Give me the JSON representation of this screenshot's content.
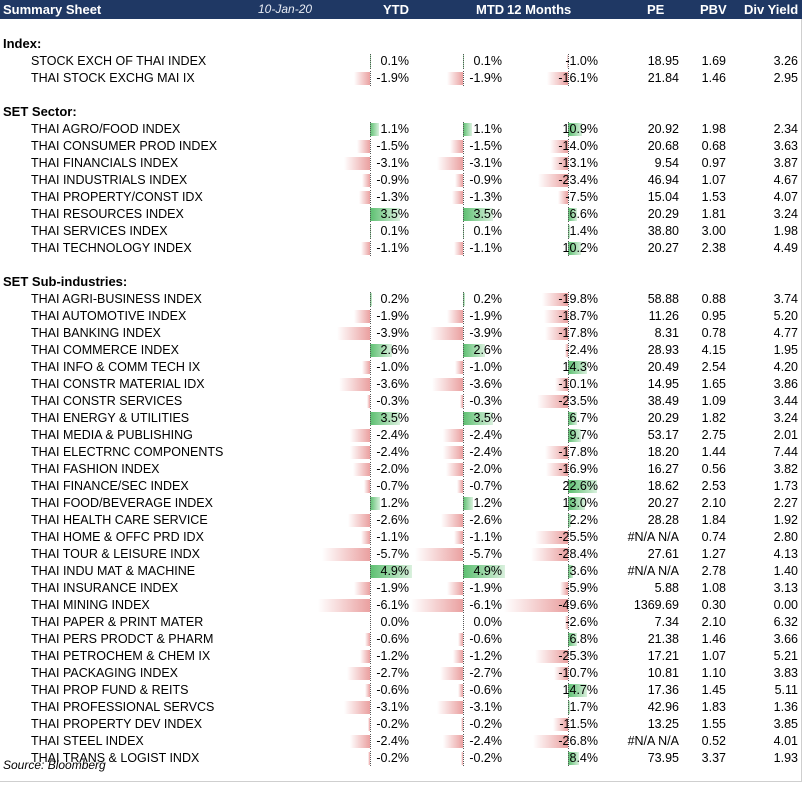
{
  "header": {
    "title": "Summary Sheet",
    "date": "10-Jan-20",
    "columns": [
      "YTD",
      "MTD",
      "12 Months",
      "PE",
      "PBV",
      "Div Yield"
    ]
  },
  "sections": [
    {
      "title": "Index:",
      "rows": [
        {
          "name": "STOCK EXCH OF THAI INDEX",
          "ytd": 0.1,
          "mtd": 0.1,
          "m12": -1.0,
          "pe": "18.95",
          "pbv": "1.69",
          "div": "3.26"
        },
        {
          "name": "THAI STOCK EXCHG MAI IX",
          "ytd": -1.9,
          "mtd": -1.9,
          "m12": -16.1,
          "pe": "21.84",
          "pbv": "1.46",
          "div": "2.95"
        }
      ]
    },
    {
      "title": "SET Sector:",
      "rows": [
        {
          "name": "THAI AGRO/FOOD INDEX",
          "ytd": 1.1,
          "mtd": 1.1,
          "m12": 10.9,
          "pe": "20.92",
          "pbv": "1.98",
          "div": "2.34"
        },
        {
          "name": "THAI CONSUMER PROD INDEX",
          "ytd": -1.5,
          "mtd": -1.5,
          "m12": -14.0,
          "pe": "20.68",
          "pbv": "0.68",
          "div": "3.63"
        },
        {
          "name": "THAI FINANCIALS INDEX",
          "ytd": -3.1,
          "mtd": -3.1,
          "m12": -13.1,
          "pe": "9.54",
          "pbv": "0.97",
          "div": "3.87"
        },
        {
          "name": "THAI INDUSTRIALS INDEX",
          "ytd": -0.9,
          "mtd": -0.9,
          "m12": -23.4,
          "pe": "46.94",
          "pbv": "1.07",
          "div": "4.67"
        },
        {
          "name": "THAI PROPERTY/CONST IDX",
          "ytd": -1.3,
          "mtd": -1.3,
          "m12": -7.5,
          "pe": "15.04",
          "pbv": "1.53",
          "div": "4.07"
        },
        {
          "name": "THAI RESOURCES INDEX",
          "ytd": 3.5,
          "mtd": 3.5,
          "m12": 6.6,
          "pe": "20.29",
          "pbv": "1.81",
          "div": "3.24"
        },
        {
          "name": "THAI SERVICES INDEX",
          "ytd": 0.1,
          "mtd": 0.1,
          "m12": 1.4,
          "pe": "38.80",
          "pbv": "3.00",
          "div": "1.98"
        },
        {
          "name": "THAI TECHNOLOGY INDEX",
          "ytd": -1.1,
          "mtd": -1.1,
          "m12": 10.2,
          "pe": "20.27",
          "pbv": "2.38",
          "div": "4.49"
        }
      ]
    },
    {
      "title": "SET Sub-industries:",
      "rows": [
        {
          "name": "THAI AGRI-BUSINESS INDEX",
          "ytd": 0.2,
          "mtd": 0.2,
          "m12": -19.8,
          "pe": "58.88",
          "pbv": "0.88",
          "div": "3.74"
        },
        {
          "name": "THAI AUTOMOTIVE INDEX",
          "ytd": -1.9,
          "mtd": -1.9,
          "m12": -18.7,
          "pe": "11.26",
          "pbv": "0.95",
          "div": "5.20"
        },
        {
          "name": "THAI BANKING INDEX",
          "ytd": -3.9,
          "mtd": -3.9,
          "m12": -17.8,
          "pe": "8.31",
          "pbv": "0.78",
          "div": "4.77"
        },
        {
          "name": "THAI COMMERCE INDEX",
          "ytd": 2.6,
          "mtd": 2.6,
          "m12": -2.4,
          "pe": "28.93",
          "pbv": "4.15",
          "div": "1.95"
        },
        {
          "name": "THAI INFO & COMM TECH IX",
          "ytd": -1.0,
          "mtd": -1.0,
          "m12": 14.3,
          "pe": "20.49",
          "pbv": "2.54",
          "div": "4.20"
        },
        {
          "name": "THAI CONSTR MATERIAL IDX",
          "ytd": -3.6,
          "mtd": -3.6,
          "m12": -10.1,
          "pe": "14.95",
          "pbv": "1.65",
          "div": "3.86"
        },
        {
          "name": "THAI CONSTR SERVICES",
          "ytd": -0.3,
          "mtd": -0.3,
          "m12": -23.5,
          "pe": "38.49",
          "pbv": "1.09",
          "div": "3.44"
        },
        {
          "name": "THAI ENERGY & UTILITIES",
          "ytd": 3.5,
          "mtd": 3.5,
          "m12": 6.7,
          "pe": "20.29",
          "pbv": "1.82",
          "div": "3.24"
        },
        {
          "name": "THAI MEDIA & PUBLISHING",
          "ytd": -2.4,
          "mtd": -2.4,
          "m12": 9.7,
          "pe": "53.17",
          "pbv": "2.75",
          "div": "2.01"
        },
        {
          "name": "THAI ELECTRNC COMPONENTS",
          "ytd": -2.4,
          "mtd": -2.4,
          "m12": -17.8,
          "pe": "18.20",
          "pbv": "1.44",
          "div": "7.44"
        },
        {
          "name": "THAI FASHION INDEX",
          "ytd": -2.0,
          "mtd": -2.0,
          "m12": -16.9,
          "pe": "16.27",
          "pbv": "0.56",
          "div": "3.82"
        },
        {
          "name": "THAI FINANCE/SEC INDEX",
          "ytd": -0.7,
          "mtd": -0.7,
          "m12": 22.6,
          "pe": "18.62",
          "pbv": "2.53",
          "div": "1.73"
        },
        {
          "name": "THAI FOOD/BEVERAGE INDEX",
          "ytd": 1.2,
          "mtd": 1.2,
          "m12": 13.0,
          "pe": "20.27",
          "pbv": "2.10",
          "div": "2.27"
        },
        {
          "name": "THAI HEALTH CARE SERVICE",
          "ytd": -2.6,
          "mtd": -2.6,
          "m12": 2.2,
          "pe": "28.28",
          "pbv": "1.84",
          "div": "1.92"
        },
        {
          "name": "THAI HOME & OFFC PRD IDX",
          "ytd": -1.1,
          "mtd": -1.1,
          "m12": -25.5,
          "pe": "#N/A N/A",
          "pbv": "0.74",
          "div": "2.80"
        },
        {
          "name": "THAI TOUR & LEISURE INDX",
          "ytd": -5.7,
          "mtd": -5.7,
          "m12": -28.4,
          "pe": "27.61",
          "pbv": "1.27",
          "div": "4.13"
        },
        {
          "name": "THAI INDU MAT & MACHINE",
          "ytd": 4.9,
          "mtd": 4.9,
          "m12": 3.6,
          "pe": "#N/A N/A",
          "pbv": "2.78",
          "div": "1.40"
        },
        {
          "name": "THAI INSURANCE INDEX",
          "ytd": -1.9,
          "mtd": -1.9,
          "m12": -5.9,
          "pe": "5.88",
          "pbv": "1.08",
          "div": "3.13"
        },
        {
          "name": "THAI MINING INDEX",
          "ytd": -6.1,
          "mtd": -6.1,
          "m12": -49.6,
          "pe": "1369.69",
          "pbv": "0.30",
          "div": "0.00"
        },
        {
          "name": "THAI PAPER & PRINT MATER",
          "ytd": 0.0,
          "mtd": 0.0,
          "m12": -2.6,
          "pe": "7.34",
          "pbv": "2.10",
          "div": "6.32"
        },
        {
          "name": "THAI PERS PRODCT & PHARM",
          "ytd": -0.6,
          "mtd": -0.6,
          "m12": 6.8,
          "pe": "21.38",
          "pbv": "1.46",
          "div": "3.66"
        },
        {
          "name": "THAI PETROCHEM & CHEM IX",
          "ytd": -1.2,
          "mtd": -1.2,
          "m12": -25.3,
          "pe": "17.21",
          "pbv": "1.07",
          "div": "5.21"
        },
        {
          "name": "THAI PACKAGING INDEX",
          "ytd": -2.7,
          "mtd": -2.7,
          "m12": -10.7,
          "pe": "10.81",
          "pbv": "1.10",
          "div": "3.83"
        },
        {
          "name": "THAI PROP FUND & REITS",
          "ytd": -0.6,
          "mtd": -0.6,
          "m12": 14.7,
          "pe": "17.36",
          "pbv": "1.45",
          "div": "5.11"
        },
        {
          "name": "THAI PROFESSIONAL SERVCS",
          "ytd": -3.1,
          "mtd": -3.1,
          "m12": 1.7,
          "pe": "42.96",
          "pbv": "1.83",
          "div": "1.36"
        },
        {
          "name": "THAI PROPERTY DEV INDEX",
          "ytd": -0.2,
          "mtd": -0.2,
          "m12": -11.5,
          "pe": "13.25",
          "pbv": "1.55",
          "div": "3.85"
        },
        {
          "name": "THAI STEEL INDEX",
          "ytd": -2.4,
          "mtd": -2.4,
          "m12": -26.8,
          "pe": "#N/A N/A",
          "pbv": "0.52",
          "div": "4.01"
        },
        {
          "name": "THAI TRANS & LOGIST INDX",
          "ytd": -0.2,
          "mtd": -0.2,
          "m12": 8.4,
          "pe": "73.95",
          "pbv": "3.37",
          "div": "1.93"
        }
      ]
    }
  ],
  "footer": {
    "source": "Source: Bloomberg"
  },
  "colors": {
    "header_bg": "#1f3864",
    "positive_bar": "#5cbf70",
    "negative_bar": "#eaa0a0"
  }
}
